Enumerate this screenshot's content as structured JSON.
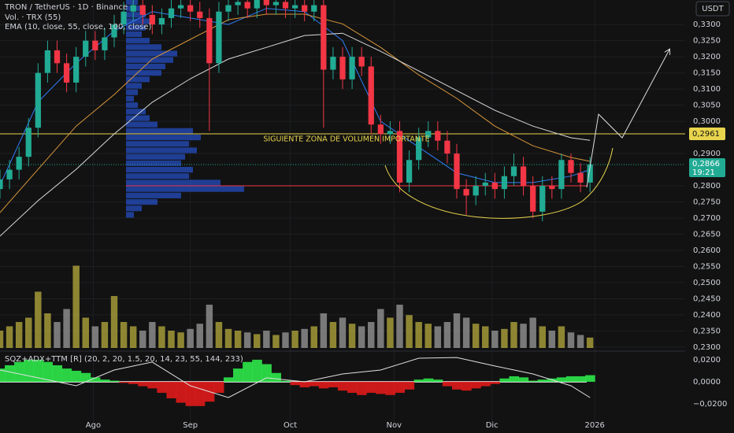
{
  "chart_data": {
    "type": "candlestick",
    "title": "TRON / TetherUS · 1D · Binance",
    "volume_label": "Vol. · TRX (55)",
    "ema_label": "EMA (10, close, 55, close, 100, close)",
    "currency": "USDT",
    "xlim": [
      0,
      72
    ],
    "xticks": [
      {
        "value": 9.8,
        "label": "Ago"
      },
      {
        "value": 20,
        "label": "Sep"
      },
      {
        "value": 30.5,
        "label": "Oct"
      },
      {
        "value": 41.4,
        "label": "Nov"
      },
      {
        "value": 51.7,
        "label": "Dic"
      },
      {
        "value": 62.5,
        "label": "2026"
      }
    ],
    "ylim": [
      0.229,
      0.3376
    ],
    "yticks": [
      {
        "value": 0.33,
        "label": "0,3300"
      },
      {
        "value": 0.325,
        "label": "0,3250"
      },
      {
        "value": 0.32,
        "label": "0,3200"
      },
      {
        "value": 0.315,
        "label": "0,3150"
      },
      {
        "value": 0.31,
        "label": "0,3100"
      },
      {
        "value": 0.305,
        "label": "0,3050"
      },
      {
        "value": 0.3,
        "label": "0,3000"
      },
      {
        "value": 0.29,
        "label": "0,2900"
      },
      {
        "value": 0.28,
        "label": "0,2800"
      },
      {
        "value": 0.275,
        "label": "0,2750"
      },
      {
        "value": 0.27,
        "label": "0,2700"
      },
      {
        "value": 0.265,
        "label": "0,2650"
      },
      {
        "value": 0.26,
        "label": "0,2600"
      },
      {
        "value": 0.255,
        "label": "0,2550"
      },
      {
        "value": 0.25,
        "label": "0,2500"
      },
      {
        "value": 0.245,
        "label": "0,2450"
      },
      {
        "value": 0.24,
        "label": "0,2400"
      },
      {
        "value": 0.235,
        "label": "0,2350"
      },
      {
        "value": 0.23,
        "label": "0,2300"
      }
    ],
    "grid": true,
    "up_color": "#22ab94",
    "down_color": "#f23645",
    "open": [
      0.279,
      0.282,
      0.285,
      0.289,
      0.298,
      0.315,
      0.322,
      0.318,
      0.312,
      0.32,
      0.325,
      0.322,
      0.326,
      0.33,
      0.334,
      0.336,
      0.333,
      0.33,
      0.332,
      0.335,
      0.336,
      0.334,
      0.332,
      0.318,
      0.334,
      0.336,
      0.337,
      0.335,
      0.338,
      0.336,
      0.337,
      0.335,
      0.336,
      0.334,
      0.336,
      0.316,
      0.32,
      0.313,
      0.32,
      0.317,
      0.299,
      0.296,
      0.297,
      0.281,
      0.288,
      0.295,
      0.297,
      0.294,
      0.29,
      0.279,
      0.277,
      0.28,
      0.281,
      0.279,
      0.283,
      0.286,
      0.28,
      0.272,
      0.28,
      0.279,
      0.288,
      0.284,
      0.281
    ],
    "high": [
      0.285,
      0.288,
      0.292,
      0.301,
      0.318,
      0.325,
      0.325,
      0.321,
      0.323,
      0.328,
      0.328,
      0.329,
      0.333,
      0.337,
      0.339,
      0.339,
      0.336,
      0.335,
      0.338,
      0.339,
      0.339,
      0.337,
      0.335,
      0.337,
      0.339,
      0.34,
      0.34,
      0.341,
      0.341,
      0.34,
      0.34,
      0.339,
      0.339,
      0.339,
      0.339,
      0.323,
      0.323,
      0.323,
      0.323,
      0.32,
      0.302,
      0.3,
      0.3,
      0.291,
      0.298,
      0.3,
      0.3,
      0.297,
      0.293,
      0.282,
      0.283,
      0.284,
      0.284,
      0.286,
      0.29,
      0.289,
      0.283,
      0.283,
      0.283,
      0.29,
      0.29,
      0.287,
      0.289
    ],
    "low": [
      0.276,
      0.279,
      0.282,
      0.286,
      0.295,
      0.312,
      0.315,
      0.309,
      0.309,
      0.317,
      0.319,
      0.319,
      0.323,
      0.327,
      0.331,
      0.33,
      0.327,
      0.327,
      0.329,
      0.332,
      0.331,
      0.329,
      0.297,
      0.315,
      0.331,
      0.333,
      0.332,
      0.332,
      0.333,
      0.333,
      0.332,
      0.332,
      0.331,
      0.331,
      0.298,
      0.313,
      0.31,
      0.31,
      0.314,
      0.296,
      0.293,
      0.293,
      0.278,
      0.278,
      0.285,
      0.292,
      0.291,
      0.287,
      0.276,
      0.271,
      0.274,
      0.277,
      0.276,
      0.276,
      0.28,
      0.277,
      0.27,
      0.269,
      0.276,
      0.276,
      0.281,
      0.278,
      0.278
    ],
    "close": [
      0.282,
      0.285,
      0.289,
      0.298,
      0.315,
      0.322,
      0.318,
      0.312,
      0.32,
      0.325,
      0.322,
      0.326,
      0.33,
      0.334,
      0.336,
      0.333,
      0.33,
      0.332,
      0.335,
      0.336,
      0.334,
      0.332,
      0.318,
      0.334,
      0.336,
      0.337,
      0.335,
      0.338,
      0.336,
      0.337,
      0.335,
      0.336,
      0.334,
      0.336,
      0.316,
      0.32,
      0.313,
      0.32,
      0.317,
      0.299,
      0.296,
      0.297,
      0.281,
      0.288,
      0.295,
      0.297,
      0.294,
      0.29,
      0.279,
      0.277,
      0.28,
      0.281,
      0.279,
      0.283,
      0.286,
      0.28,
      0.272,
      0.28,
      0.279,
      0.288,
      0.284,
      0.281,
      0.2866
    ],
    "volume": {
      "ylim": [
        0,
        100
      ],
      "up_color": "#a59a3a",
      "down_color": "#8c8c8c",
      "values": [
        20,
        25,
        30,
        35,
        65,
        40,
        30,
        45,
        95,
        35,
        25,
        30,
        60,
        30,
        25,
        20,
        30,
        25,
        20,
        18,
        22,
        28,
        50,
        30,
        22,
        20,
        18,
        16,
        20,
        15,
        18,
        20,
        22,
        25,
        40,
        30,
        35,
        28,
        25,
        30,
        45,
        35,
        50,
        38,
        30,
        28,
        25,
        30,
        40,
        35,
        28,
        25,
        20,
        22,
        30,
        28,
        35,
        25,
        20,
        25,
        18,
        15,
        12
      ]
    },
    "ema": [
      {
        "color": "#2f7df6",
        "x": [
          0,
          4,
          8,
          12,
          16,
          20,
          24,
          28,
          32,
          36,
          40,
          44,
          48,
          52,
          56,
          60,
          62
        ],
        "values": [
          0.2802,
          0.306,
          0.318,
          0.328,
          0.334,
          0.332,
          0.33,
          0.335,
          0.334,
          0.325,
          0.3,
          0.292,
          0.284,
          0.281,
          0.281,
          0.283,
          0.285
        ]
      },
      {
        "color": "#d8953a",
        "x": [
          0,
          4,
          8,
          12,
          16,
          20,
          24,
          28,
          32,
          36,
          40,
          44,
          48,
          52,
          56,
          60,
          62
        ],
        "values": [
          0.2717,
          0.2851,
          0.2985,
          0.3083,
          0.3193,
          0.3254,
          0.3315,
          0.3332,
          0.3332,
          0.3302,
          0.3229,
          0.3144,
          0.3071,
          0.2985,
          0.2924,
          0.2888,
          0.2876
        ]
      },
      {
        "color": "#d9d9d9",
        "x": [
          0,
          4,
          8,
          12,
          16,
          20,
          24,
          28,
          32,
          36,
          40,
          44,
          48,
          52,
          56,
          60,
          62
        ],
        "values": [
          0.2644,
          0.2754,
          0.2851,
          0.2961,
          0.3059,
          0.3132,
          0.3193,
          0.3229,
          0.3266,
          0.3273,
          0.3217,
          0.3156,
          0.3095,
          0.3034,
          0.2985,
          0.2949,
          0.2941
        ]
      }
    ],
    "volume_profile": {
      "xlim": [
        0,
        200
      ],
      "color": "#2962ff",
      "prices": [
        0.271,
        0.273,
        0.275,
        0.277,
        0.279,
        0.281,
        0.283,
        0.285,
        0.287,
        0.289,
        0.291,
        0.293,
        0.295,
        0.297,
        0.299,
        0.301,
        0.303,
        0.305,
        0.307,
        0.309,
        0.311,
        0.313,
        0.315,
        0.317,
        0.319,
        0.321,
        0.323,
        0.325,
        0.327,
        0.329,
        0.331,
        0.333,
        0.335,
        0.337
      ],
      "values": [
        10,
        20,
        40,
        70,
        150,
        120,
        80,
        85,
        70,
        75,
        90,
        80,
        95,
        85,
        40,
        30,
        25,
        15,
        10,
        15,
        20,
        30,
        45,
        50,
        60,
        65,
        45,
        30,
        20,
        25,
        30,
        25,
        20,
        15
      ]
    },
    "levels": [
      {
        "value": 0.2961,
        "label": "0,2961",
        "color": "#e8d44d"
      }
    ],
    "support": {
      "value": 0.28,
      "color": "#f23645"
    },
    "annotation": "SIGUIENTE ZONA DE VOLUMEN IMPORTANTE",
    "last_price": {
      "value": 0.2866,
      "label": "0,2866",
      "countdown": "19:21"
    },
    "indicator": {
      "title": "SQZ+ADX+TTM [R] (20, 2, 20, 1.5, 20, 14, 23, 55, 144, 233)",
      "ylim": [
        -0.0393,
        0.0271
      ],
      "yticks": [
        {
          "value": 0.02,
          "label": "0,0200"
        },
        {
          "value": 0,
          "label": "0,0000"
        },
        {
          "value": -0.02,
          "label": "−0,0200"
        }
      ],
      "pos_color": "#2ee84a",
      "neg_color": "#e01b1b",
      "values": [
        0.012,
        0.015,
        0.018,
        0.02,
        0.02,
        0.018,
        0.015,
        0.012,
        0.01,
        0.008,
        0.004,
        0.002,
        0.001,
        -0.001,
        -0.002,
        -0.004,
        -0.006,
        -0.01,
        -0.015,
        -0.019,
        -0.022,
        -0.022,
        -0.018,
        -0.01,
        0.004,
        0.012,
        0.018,
        0.02,
        0.016,
        0.008,
        0.001,
        -0.003,
        -0.005,
        -0.004,
        -0.006,
        -0.005,
        -0.008,
        -0.01,
        -0.012,
        -0.01,
        -0.011,
        -0.012,
        -0.01,
        -0.007,
        0.002,
        0.003,
        0.002,
        -0.004,
        -0.007,
        -0.008,
        -0.006,
        -0.004,
        -0.002,
        0.003,
        0.005,
        0.004,
        0.001,
        0.002,
        0.003,
        0.004,
        0.005,
        0.005,
        0.006
      ],
      "line": {
        "color": "#e0e0e0",
        "x": [
          0,
          4,
          8,
          12,
          16,
          20,
          24,
          28,
          32,
          36,
          40,
          44,
          48,
          52,
          56,
          60,
          62
        ],
        "values": [
          0.0107,
          0.0036,
          -0.0036,
          0.0107,
          0.0179,
          -0.0036,
          -0.0143,
          0.0036,
          0,
          0.0071,
          0.0107,
          0.0214,
          0.022,
          0.0143,
          0.0071,
          -0.0036,
          -0.0143
        ]
      }
    }
  }
}
